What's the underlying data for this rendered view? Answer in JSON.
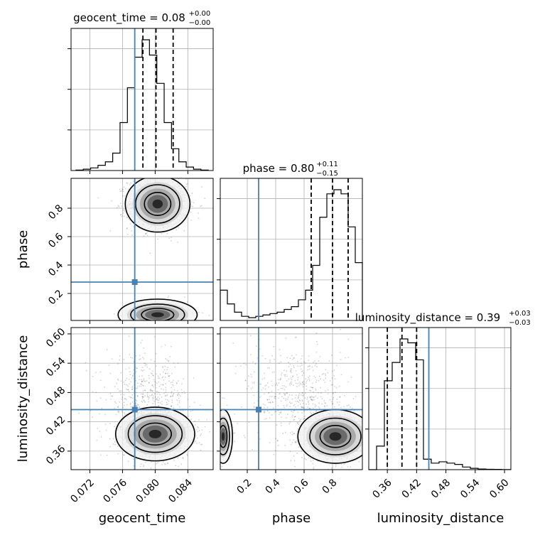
{
  "chart_data": {
    "type": "corner",
    "parameters": [
      "geocent_time",
      "phase",
      "luminosity_distance"
    ],
    "axis_labels": {
      "geocent_time": "geocent_time",
      "phase": "phase",
      "luminosity_distance": "luminosity_distance"
    },
    "ranges": {
      "geocent_time": [
        0.0697,
        0.0871
      ],
      "phase": [
        0.01,
        1.01
      ],
      "luminosity_distance": [
        0.322,
        0.613
      ]
    },
    "ticks": {
      "geocent_time": [
        0.072,
        0.076,
        0.08,
        0.084
      ],
      "phase": [
        0.2,
        0.4,
        0.6,
        0.8
      ],
      "luminosity_distance": [
        0.36,
        0.42,
        0.48,
        0.54,
        0.6
      ]
    },
    "tick_labels": {
      "geocent_time": [
        "0.072",
        "0.076",
        "0.080",
        "0.084"
      ],
      "phase": [
        "0.2",
        "0.4",
        "0.6",
        "0.8"
      ],
      "luminosity_distance": [
        "0.36",
        "0.42",
        "0.48",
        "0.54",
        "0.60"
      ]
    },
    "injection": {
      "geocent_time": 0.0775,
      "phase": 0.28,
      "luminosity_distance": 0.445
    },
    "quantiles": {
      "geocent_time": [
        0.0785,
        0.0801,
        0.0822
      ],
      "phase": [
        0.65,
        0.8,
        0.91
      ],
      "luminosity_distance": [
        0.36,
        0.39,
        0.42
      ]
    },
    "titles": {
      "geocent_time": {
        "main": "geocent_time = 0.08",
        "plus": "+0.00",
        "minus": "−0.00"
      },
      "phase": {
        "main": "phase = 0.80",
        "plus": "+0.11",
        "minus": "−0.15"
      },
      "luminosity_distance": {
        "main": "luminosity_distance = 0.39",
        "plus": "+0.03",
        "minus": "−0.03"
      }
    },
    "hist_1d": {
      "geocent_time": {
        "bin_edges": [
          0.0703,
          0.0712,
          0.0721,
          0.073,
          0.0739,
          0.0748,
          0.0757,
          0.0766,
          0.0775,
          0.0784,
          0.0793,
          0.0802,
          0.0811,
          0.082,
          0.0829,
          0.0838,
          0.0847,
          0.0856,
          0.0865
        ],
        "counts": [
          1,
          3,
          6,
          12,
          20,
          40,
          110,
          190,
          260,
          300,
          265,
          200,
          110,
          50,
          20,
          8,
          3,
          1
        ]
      },
      "phase": {
        "bin_edges": [
          0.01,
          0.06,
          0.11,
          0.16,
          0.21,
          0.26,
          0.31,
          0.36,
          0.41,
          0.46,
          0.51,
          0.56,
          0.61,
          0.66,
          0.71,
          0.76,
          0.81,
          0.86,
          0.91,
          0.96,
          1.01
        ],
        "counts": [
          0.22,
          0.12,
          0.06,
          0.03,
          0.02,
          0.03,
          0.04,
          0.05,
          0.06,
          0.08,
          0.1,
          0.15,
          0.22,
          0.4,
          0.75,
          0.92,
          0.95,
          0.92,
          0.68,
          0.42
        ]
      },
      "luminosity_distance": {
        "bin_edges": [
          0.322,
          0.338,
          0.354,
          0.37,
          0.386,
          0.402,
          0.418,
          0.434,
          0.45,
          0.466,
          0.482,
          0.498,
          0.514,
          0.53,
          0.546,
          0.562,
          0.578,
          0.594,
          0.613
        ],
        "counts": [
          0.0,
          0.18,
          0.68,
          0.82,
          1.0,
          0.97,
          0.84,
          0.08,
          0.05,
          0.06,
          0.05,
          0.04,
          0.02,
          0.01,
          0.005,
          0.003,
          0.002,
          0.001
        ]
      }
    },
    "density_2d": [
      {
        "x": "geocent_time",
        "y": "phase",
        "cx": 0.0803,
        "cy": 0.83,
        "sx": 0.0018,
        "sy": 0.09,
        "n": 1400,
        "second": {
          "cx": 0.0803,
          "cy": 0.05,
          "sx": 0.0022,
          "sy": 0.05,
          "n": 220
        }
      },
      {
        "x": "geocent_time",
        "y": "luminosity_distance",
        "cx": 0.08,
        "cy": 0.395,
        "sx": 0.0022,
        "sy": 0.025,
        "n": 1300,
        "tail": {
          "cx": 0.079,
          "cy": 0.475,
          "sx": 0.0025,
          "sy": 0.04,
          "n": 450
        }
      },
      {
        "x": "phase",
        "y": "luminosity_distance",
        "cx": 0.82,
        "cy": 0.39,
        "sx": 0.12,
        "sy": 0.025,
        "n": 1200,
        "tail": {
          "cx": 0.55,
          "cy": 0.48,
          "sx": 0.18,
          "sy": 0.05,
          "n": 500
        },
        "second": {
          "cx": 0.03,
          "cy": 0.39,
          "sx": 0.03,
          "sy": 0.025,
          "n": 120
        }
      }
    ]
  }
}
